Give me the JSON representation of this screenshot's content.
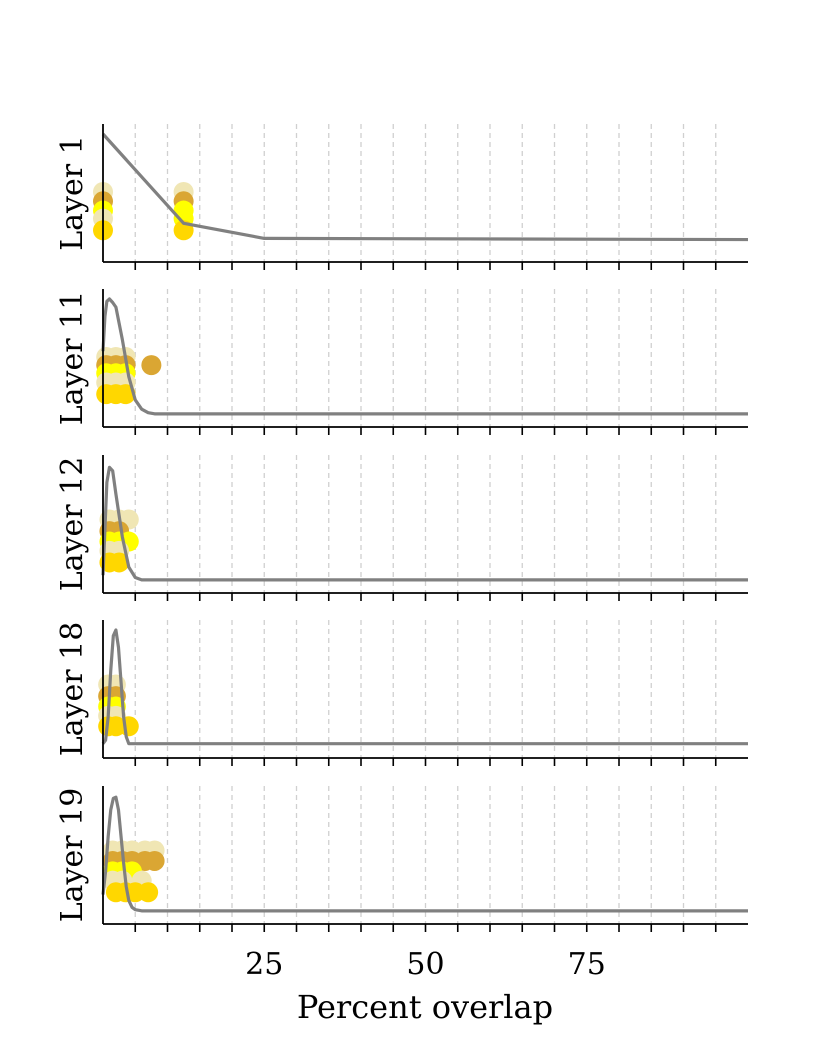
{
  "chart_data": {
    "type": "scatter",
    "xlabel": "Percent overlap",
    "xlim": [
      0,
      100
    ],
    "xticks_labeled": [
      25,
      50,
      75
    ],
    "grid_vertical_every": 5,
    "grid_style": "dashed",
    "line_color": "#808080",
    "point_colors": [
      "#f0e6b4",
      "#daa633",
      "#ffff00",
      "#ffd700"
    ],
    "panels": [
      {
        "ylabel": "Layer 1",
        "curve": {
          "x": [
            0,
            12.5,
            25,
            100
          ],
          "y": [
            1.0,
            0.23,
            0.1,
            0.09
          ]
        },
        "points": [
          {
            "x": 0,
            "y": 0.5,
            "c": 0
          },
          {
            "x": 0,
            "y": 0.42,
            "c": 1
          },
          {
            "x": 0,
            "y": 0.34,
            "c": 2
          },
          {
            "x": 0,
            "y": 0.27,
            "c": 0
          },
          {
            "x": 0,
            "y": 0.17,
            "c": 3
          },
          {
            "x": 12.5,
            "y": 0.5,
            "c": 0
          },
          {
            "x": 12.5,
            "y": 0.42,
            "c": 1
          },
          {
            "x": 12.5,
            "y": 0.34,
            "c": 2
          },
          {
            "x": 12.5,
            "y": 0.27,
            "c": 2
          },
          {
            "x": 12.5,
            "y": 0.17,
            "c": 3
          }
        ]
      },
      {
        "ylabel": "Layer 11",
        "curve": {
          "x": [
            0,
            0.3,
            0.6,
            1,
            1.5,
            2,
            3,
            4,
            5,
            6,
            7,
            8,
            10,
            100
          ],
          "y": [
            0.55,
            0.85,
            0.98,
            1.0,
            0.97,
            0.93,
            0.65,
            0.33,
            0.13,
            0.05,
            0.02,
            0.01,
            0.01,
            0.01
          ]
        },
        "points": [
          {
            "x": 0.5,
            "y": 0.5,
            "c": 0
          },
          {
            "x": 2,
            "y": 0.5,
            "c": 0
          },
          {
            "x": 3.5,
            "y": 0.5,
            "c": 0
          },
          {
            "x": 0.5,
            "y": 0.43,
            "c": 1
          },
          {
            "x": 2,
            "y": 0.43,
            "c": 1
          },
          {
            "x": 3.5,
            "y": 0.43,
            "c": 1
          },
          {
            "x": 7.5,
            "y": 0.43,
            "c": 1
          },
          {
            "x": 0.5,
            "y": 0.36,
            "c": 2
          },
          {
            "x": 2,
            "y": 0.36,
            "c": 2
          },
          {
            "x": 3.5,
            "y": 0.36,
            "c": 2
          },
          {
            "x": 0.5,
            "y": 0.28,
            "c": 0
          },
          {
            "x": 2,
            "y": 0.28,
            "c": 0
          },
          {
            "x": 3.5,
            "y": 0.28,
            "c": 0
          },
          {
            "x": 0.5,
            "y": 0.18,
            "c": 3
          },
          {
            "x": 2,
            "y": 0.18,
            "c": 3
          },
          {
            "x": 3.5,
            "y": 0.18,
            "c": 3
          }
        ]
      },
      {
        "ylabel": "Layer 12",
        "curve": {
          "x": [
            0,
            0.3,
            0.6,
            1,
            1.5,
            2,
            3,
            4,
            5,
            6,
            7,
            8,
            10,
            100
          ],
          "y": [
            0.05,
            0.45,
            0.85,
            0.98,
            0.95,
            0.75,
            0.38,
            0.12,
            0.03,
            0.01,
            0.01,
            0.01,
            0.01,
            0.01
          ]
        },
        "points": [
          {
            "x": 1,
            "y": 0.53,
            "c": 0
          },
          {
            "x": 2.5,
            "y": 0.53,
            "c": 0
          },
          {
            "x": 4,
            "y": 0.53,
            "c": 0
          },
          {
            "x": 1,
            "y": 0.43,
            "c": 1
          },
          {
            "x": 2.5,
            "y": 0.43,
            "c": 1
          },
          {
            "x": 1,
            "y": 0.34,
            "c": 2
          },
          {
            "x": 2.5,
            "y": 0.34,
            "c": 2
          },
          {
            "x": 4,
            "y": 0.34,
            "c": 2
          },
          {
            "x": 1,
            "y": 0.26,
            "c": 0
          },
          {
            "x": 2.5,
            "y": 0.26,
            "c": 0
          },
          {
            "x": 1,
            "y": 0.16,
            "c": 3
          },
          {
            "x": 2.5,
            "y": 0.16,
            "c": 3
          }
        ]
      },
      {
        "ylabel": "Layer 18",
        "curve": {
          "x": [
            0,
            0.4,
            0.8,
            1.2,
            1.6,
            2,
            2.4,
            2.8,
            3.2,
            3.6,
            4,
            5,
            6,
            100
          ],
          "y": [
            0.02,
            0.05,
            0.25,
            0.65,
            0.95,
            1.0,
            0.85,
            0.55,
            0.25,
            0.08,
            0.02,
            0.02,
            0.02,
            0.02
          ]
        },
        "points": [
          {
            "x": 0.8,
            "y": 0.53,
            "c": 0
          },
          {
            "x": 2,
            "y": 0.53,
            "c": 0
          },
          {
            "x": 0.8,
            "y": 0.43,
            "c": 1
          },
          {
            "x": 2,
            "y": 0.43,
            "c": 1
          },
          {
            "x": 0.8,
            "y": 0.34,
            "c": 2
          },
          {
            "x": 2,
            "y": 0.34,
            "c": 2
          },
          {
            "x": 0.8,
            "y": 0.26,
            "c": 0
          },
          {
            "x": 2,
            "y": 0.26,
            "c": 0
          },
          {
            "x": 0.8,
            "y": 0.17,
            "c": 3
          },
          {
            "x": 2,
            "y": 0.17,
            "c": 3
          },
          {
            "x": 4,
            "y": 0.17,
            "c": 3
          }
        ]
      },
      {
        "ylabel": "Layer 19",
        "curve": {
          "x": [
            0,
            0.4,
            0.8,
            1.2,
            1.6,
            2,
            2.4,
            2.8,
            3.2,
            3.6,
            4,
            4.5,
            5,
            6,
            8,
            100
          ],
          "y": [
            0.15,
            0.35,
            0.65,
            0.88,
            0.98,
            0.99,
            0.88,
            0.65,
            0.42,
            0.22,
            0.1,
            0.04,
            0.02,
            0.01,
            0.01,
            0.01
          ]
        },
        "points": [
          {
            "x": 1.5,
            "y": 0.53,
            "c": 0
          },
          {
            "x": 3,
            "y": 0.53,
            "c": 0
          },
          {
            "x": 4.5,
            "y": 0.53,
            "c": 0
          },
          {
            "x": 6.5,
            "y": 0.53,
            "c": 0
          },
          {
            "x": 8,
            "y": 0.53,
            "c": 0
          },
          {
            "x": 1.5,
            "y": 0.44,
            "c": 1
          },
          {
            "x": 3,
            "y": 0.44,
            "c": 1
          },
          {
            "x": 4.5,
            "y": 0.44,
            "c": 1
          },
          {
            "x": 6.5,
            "y": 0.44,
            "c": 1
          },
          {
            "x": 8,
            "y": 0.44,
            "c": 1
          },
          {
            "x": 1.5,
            "y": 0.35,
            "c": 2
          },
          {
            "x": 3,
            "y": 0.35,
            "c": 2
          },
          {
            "x": 4.5,
            "y": 0.35,
            "c": 2
          },
          {
            "x": 1.5,
            "y": 0.27,
            "c": 0
          },
          {
            "x": 3,
            "y": 0.27,
            "c": 0
          },
          {
            "x": 6,
            "y": 0.27,
            "c": 0
          },
          {
            "x": 2,
            "y": 0.17,
            "c": 3
          },
          {
            "x": 3.5,
            "y": 0.17,
            "c": 3
          },
          {
            "x": 5,
            "y": 0.17,
            "c": 3
          },
          {
            "x": 7,
            "y": 0.17,
            "c": 3
          }
        ]
      }
    ]
  }
}
